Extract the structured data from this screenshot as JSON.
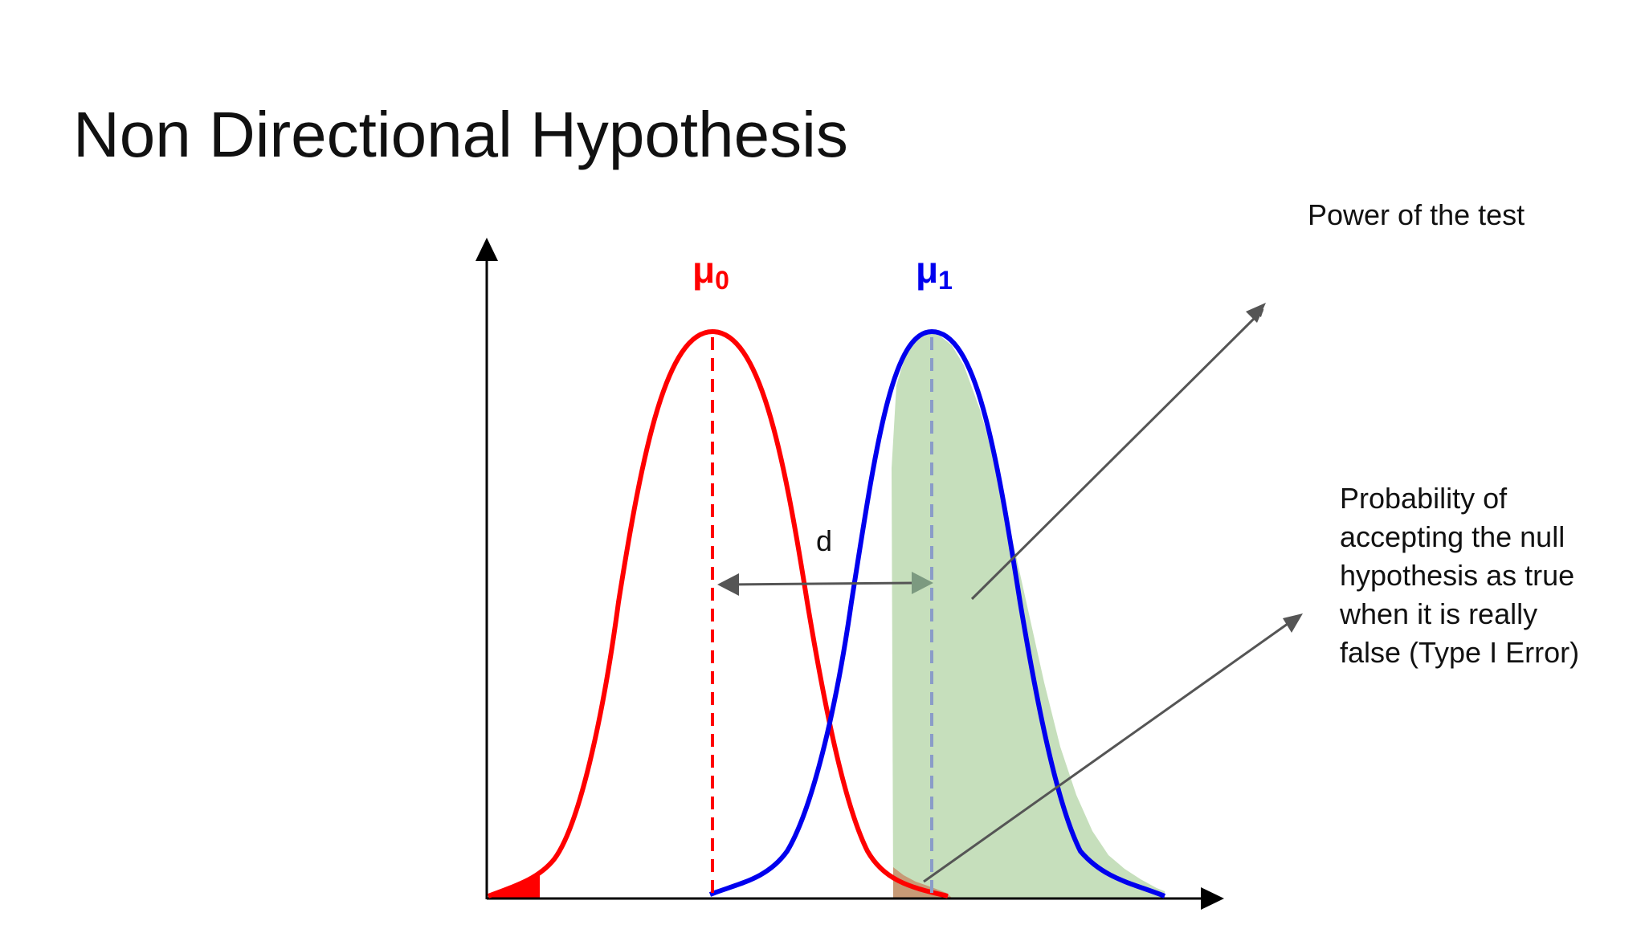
{
  "title": "Non Directional Hypothesis",
  "labels": {
    "mu0_base": "μ",
    "mu0_sub": "0",
    "mu1_base": "μ",
    "mu1_sub": "1",
    "d": "d",
    "power": "Power of the test",
    "probability_lines": [
      "Probability of",
      "accepting the null",
      "hypothesis as true",
      "when it is really",
      "false (Type I Error)"
    ]
  },
  "colors": {
    "null_distribution": "#ff0000",
    "alternative_distribution": "#0000ee",
    "power_region": "#c6dfbc",
    "overlap_region": "#c79a76",
    "arrows": "#555555",
    "axes": "#000000"
  }
}
